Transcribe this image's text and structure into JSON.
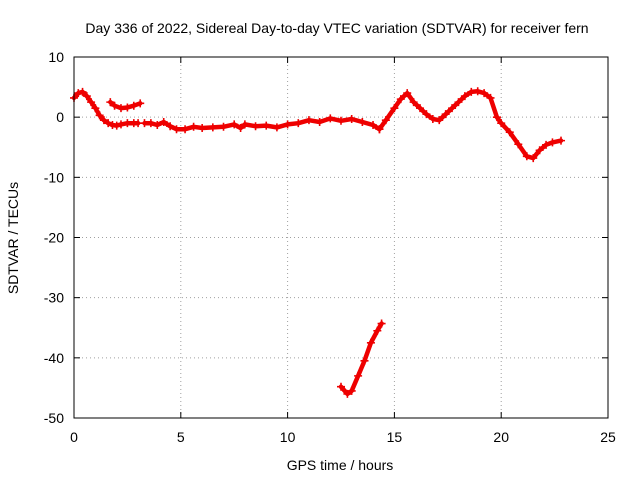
{
  "chart_data": {
    "type": "scatter",
    "title": "Day 336 of 2022, Sidereal Day-to-day VTEC variation (SDTVAR) for receiver fern",
    "xlabel": "GPS time / hours",
    "ylabel": "SDTVAR / TECUs",
    "xlim": [
      0,
      25
    ],
    "ylim": [
      -50,
      10
    ],
    "xticks": [
      0,
      5,
      10,
      15,
      20,
      25
    ],
    "xtick_labels": [
      "0",
      "5",
      "10",
      "15",
      "20",
      "25"
    ],
    "yticks": [
      10,
      0,
      -10,
      -20,
      -30,
      -40,
      -50
    ],
    "ytick_labels": [
      "10",
      "0",
      "-10",
      "-20",
      "-30",
      "-40",
      "-50"
    ],
    "grid": true,
    "marker": "+",
    "color": "#ee0000",
    "series": [
      {
        "name": "seg-a",
        "x": [
          0.0,
          0.2,
          0.4,
          0.6,
          0.8,
          1.0,
          1.2,
          1.4,
          1.6,
          1.8,
          2.0,
          2.2,
          2.5,
          2.8,
          3.0
        ],
        "y": [
          3.2,
          4.0,
          4.2,
          3.5,
          2.5,
          1.5,
          0.3,
          -0.5,
          -1.0,
          -1.3,
          -1.4,
          -1.2,
          -1.0,
          -1.0,
          -1.0
        ]
      },
      {
        "name": "seg-b",
        "x": [
          1.7,
          1.9,
          2.2,
          2.5,
          2.8,
          3.1
        ],
        "y": [
          2.5,
          1.9,
          1.5,
          1.6,
          1.9,
          2.3
        ]
      },
      {
        "name": "seg-c",
        "x": [
          3.3,
          3.6,
          3.9,
          4.2,
          4.5,
          4.8,
          5.2,
          5.6,
          6.0,
          6.5,
          7.0,
          7.5,
          7.8,
          8.0,
          8.5,
          9.0,
          9.5,
          10.0,
          10.5,
          11.0,
          11.5,
          12.0,
          12.5,
          13.0,
          13.5,
          14.0,
          14.3
        ],
        "y": [
          -1.0,
          -1.0,
          -1.3,
          -0.8,
          -1.5,
          -2.0,
          -2.0,
          -1.6,
          -1.8,
          -1.7,
          -1.6,
          -1.2,
          -1.8,
          -1.2,
          -1.5,
          -1.4,
          -1.7,
          -1.2,
          -1.0,
          -0.5,
          -0.8,
          -0.2,
          -0.6,
          -0.3,
          -0.8,
          -1.3,
          -2.0
        ]
      },
      {
        "name": "seg-d",
        "x": [
          14.3,
          14.6,
          15.0,
          15.3,
          15.6,
          15.9,
          16.2,
          16.5,
          16.8,
          17.1,
          17.4,
          17.7,
          18.0,
          18.3,
          18.6,
          18.9,
          19.2,
          19.5,
          19.8,
          20.0,
          20.4,
          20.8,
          21.2,
          21.5,
          21.8,
          22.1,
          22.4,
          22.8
        ],
        "y": [
          -2.0,
          -0.5,
          1.5,
          3.0,
          4.0,
          2.5,
          1.5,
          0.5,
          -0.3,
          -0.5,
          0.5,
          1.5,
          2.5,
          3.5,
          4.2,
          4.3,
          4.0,
          3.2,
          0.0,
          -1.0,
          -2.5,
          -4.5,
          -6.5,
          -6.8,
          -5.5,
          -4.6,
          -4.2,
          -3.9
        ]
      },
      {
        "name": "seg-e",
        "x": [
          12.5,
          12.8,
          13.0,
          13.3,
          13.6,
          13.9,
          14.2,
          14.4
        ],
        "y": [
          -44.8,
          -46.0,
          -45.5,
          -43.0,
          -40.5,
          -37.5,
          -35.5,
          -34.3
        ]
      }
    ]
  }
}
